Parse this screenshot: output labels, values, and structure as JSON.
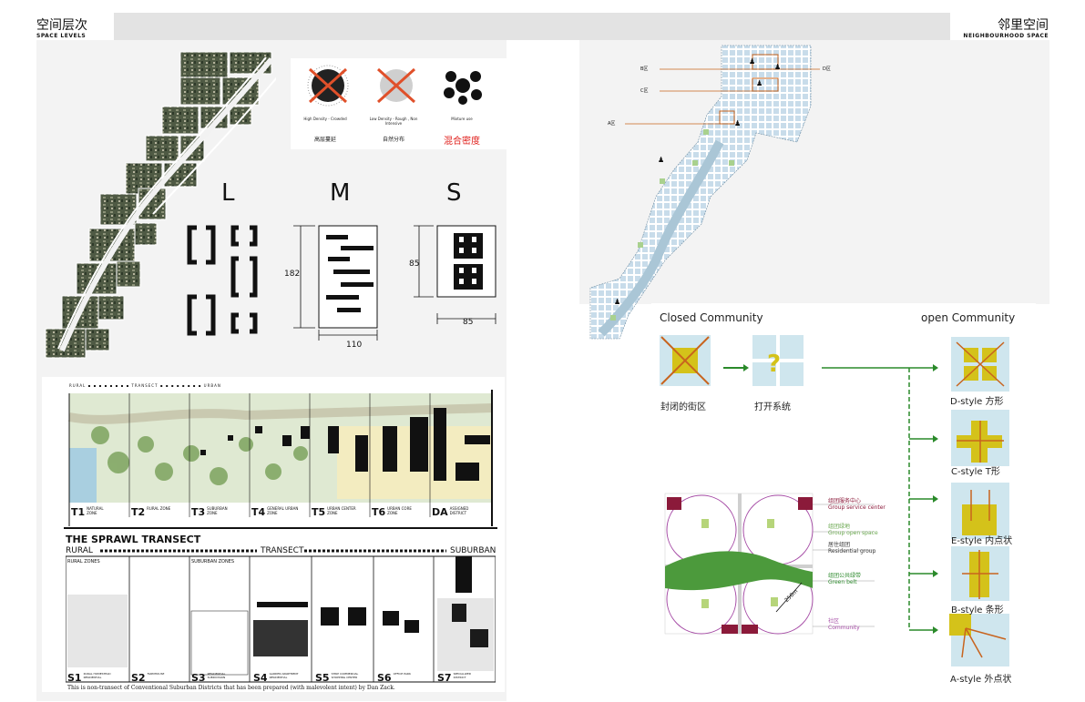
{
  "header": {
    "left_title_cn": "空间层次",
    "left_title_en": "SPACE LEVELS",
    "right_title_cn": "邻里空间",
    "right_title_en": "NEIGHBOURHOOD SPACE"
  },
  "density": {
    "items": [
      {
        "caption_en": "High Density - Crowded",
        "caption_cn": "高层蔓延"
      },
      {
        "caption_en": "Low Density - Rough , Non Intensive",
        "caption_cn": "自然分布"
      },
      {
        "caption_en": "Mixture use",
        "caption_cn": "混合密度"
      }
    ]
  },
  "sizes": {
    "labels": [
      "L",
      "M",
      "S"
    ],
    "m_height": "182",
    "m_width": "110",
    "s_height": "85",
    "s_width": "85"
  },
  "transect_top": {
    "header_text": "RURAL ▪ ▪ ▪ ▪ ▪ ▪ ▪ ▪ TRANSECT ▪ ▪ ▪ ▪ ▪ ▪ ▪ ▪ URBAN",
    "zones": [
      {
        "code": "T1",
        "name": "NATURAL ZONE"
      },
      {
        "code": "T2",
        "name": "RURAL ZONE"
      },
      {
        "code": "T3",
        "name": "SUBURBAN ZONE"
      },
      {
        "code": "T4",
        "name": "GENERAL URBAN ZONE"
      },
      {
        "code": "T5",
        "name": "URBAN CENTER ZONE"
      },
      {
        "code": "T6",
        "name": "URBAN CORE ZONE"
      },
      {
        "code": "DA",
        "name": "ASSIGNED DISTRICT"
      }
    ]
  },
  "transect_bottom": {
    "title": "THE SPRAWL TRANSECT",
    "rural": "RURAL",
    "transect": "TRANSECT",
    "suburban": "SUBURBAN",
    "rural_zones": "RURAL ZONES",
    "suburban_zones": "SUBURBAN ZONES",
    "zones": [
      {
        "code": "S1",
        "name": "RURAL HOMESTEAD RESIDENTIAL"
      },
      {
        "code": "S2",
        "name": "FARMHOUSE"
      },
      {
        "code": "S3",
        "name": "RESIDENTIAL SUBDIVISION"
      },
      {
        "code": "S4",
        "name": "GARDEN APARTMENT RESIDENTIAL"
      },
      {
        "code": "S5",
        "name": "STRIP COMMERCIAL SHOPPING CENTER"
      },
      {
        "code": "S6",
        "name": "OFFICE PARK"
      },
      {
        "code": "S7",
        "name": "SPECIALIZED DISTRICT"
      }
    ],
    "caption": "This is non-transect of Conventional Suburban Districts that has been prepared (with malevolent intent) by Dan Zack."
  },
  "map_labels": [
    "B区",
    "D区",
    "C区",
    "A区"
  ],
  "community": {
    "closed_title": "Closed Community",
    "open_title": "open Community",
    "closed_cn": "封闭的街区",
    "open_system_cn": "打开系统",
    "question_mark": "?",
    "styles": [
      {
        "label": "D-style 方形"
      },
      {
        "label": "C-style T形"
      },
      {
        "label": "E-style 内点状"
      },
      {
        "label": "B-style 条形"
      },
      {
        "label": "A-style 外点状"
      }
    ],
    "legend": [
      {
        "cn": "组团服务中心",
        "en": "Group service center",
        "color": "#8b1a3a"
      },
      {
        "cn": "组团绿地",
        "en": "Group open space",
        "color": "#6aa84f"
      },
      {
        "cn": "居住组团",
        "en": "Residential group",
        "color": "#333333"
      },
      {
        "cn": "组团公共绿带",
        "en": "Green belt",
        "color": "#2e8b2e"
      },
      {
        "cn": "社区",
        "en": "Community",
        "color": "#a64ca6"
      }
    ],
    "scale_text": "250m"
  },
  "colors": {
    "accent_orange": "#c8641e",
    "accent_yellow": "#d4c21a",
    "light_blue": "#cfe6ee",
    "green_arrow": "#2a8a2a",
    "red_text": "#e0201c"
  }
}
